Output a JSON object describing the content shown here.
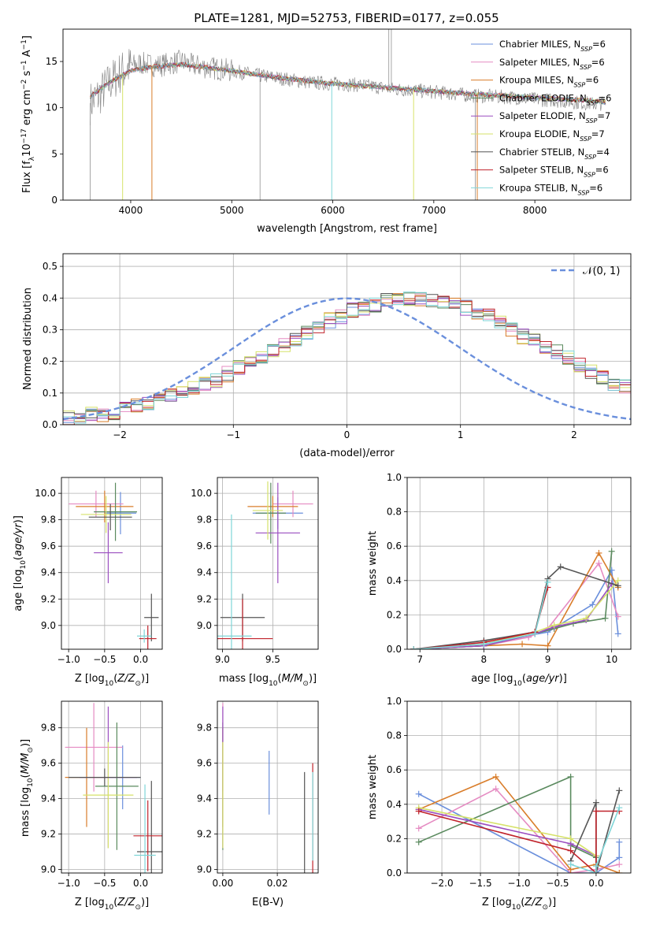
{
  "title": "PLATE=1281, MJD=52753, FIBERID=0177, z=0.055",
  "colors": {
    "Chabrier MILES": "#6a8fdc",
    "Salpeter MILES": "#e58bc2",
    "Kroupa MILES": "#d97d2a",
    "Chabrier ELODIE": "#5a8a5e",
    "Salpeter ELODIE": "#9b4fc0",
    "Kroupa ELODIE": "#d6e26a",
    "Chabrier STELIB": "#555555",
    "Salpeter STELIB": "#c0232b",
    "Kroupa STELIB": "#7fd6d8"
  },
  "chart_data": [
    {
      "id": "spectrum",
      "type": "line",
      "xlabel": "wavelength [Angstrom, rest frame]",
      "ylabel": "Flux [f_λ 10^-17 erg cm^-2 s^-1 A^-1]",
      "xlim": [
        3330,
        8950
      ],
      "ylim": [
        0,
        18.5
      ],
      "xticks": [
        "4000",
        "5000",
        "6000",
        "7000",
        "8000"
      ],
      "yticks": [
        "0",
        "5",
        "10",
        "15"
      ],
      "grid": false,
      "legend_position": "top-right",
      "legend": [
        "Chabrier MILES, N_SSP=6",
        "Salpeter MILES, N_SSP=6",
        "Kroupa MILES, N_SSP=6",
        "Chabrier ELODIE, N_SSP=6",
        "Salpeter ELODIE, N_SSP=7",
        "Kroupa ELODIE, N_SSP=7",
        "Chabrier STELIB, N_SSP=4",
        "Salpeter STELIB, N_SSP=6",
        "Kroupa STELIB, N_SSP=6"
      ],
      "data_series": {
        "name": "data",
        "color": "#808080",
        "x": [
          3600,
          3700,
          3800,
          3900,
          4000,
          4100,
          4200,
          4300,
          4400,
          4500,
          4600,
          4800,
          5000,
          5200,
          5400,
          5600,
          5800,
          6000,
          6200,
          6400,
          6600,
          6800,
          7000,
          7200,
          7400,
          7600,
          7800,
          8000,
          8200,
          8400,
          8600,
          8700
        ],
        "y": [
          10.5,
          11.5,
          12.8,
          13.8,
          14.5,
          14.8,
          14.6,
          14.6,
          14.8,
          15.0,
          14.6,
          14.3,
          14.0,
          13.6,
          13.3,
          13.0,
          12.7,
          12.6,
          12.5,
          12.3,
          12.0,
          11.9,
          11.7,
          11.5,
          11.3,
          11.2,
          11.1,
          10.9,
          10.8,
          10.6,
          10.4,
          10.5
        ]
      },
      "model_series": [
        {
          "x": [
            3600,
            3800,
            4000,
            4200,
            4500,
            5000,
            5500,
            6000,
            6500,
            7000,
            7500,
            8000,
            8500,
            8700
          ],
          "y": [
            11.2,
            12.8,
            14.0,
            14.4,
            14.7,
            14.0,
            13.2,
            12.6,
            12.2,
            11.8,
            11.4,
            11.1,
            10.8,
            10.6
          ]
        }
      ]
    },
    {
      "id": "residual-histogram",
      "type": "histogram",
      "xlabel": "(data-model)/error",
      "ylabel": "Normed distribution",
      "xlim": [
        -2.5,
        2.5
      ],
      "ylim": [
        0,
        0.54
      ],
      "xticks": [
        "−2",
        "−1",
        "0",
        "1",
        "2"
      ],
      "yticks": [
        "0.0",
        "0.1",
        "0.2",
        "0.3",
        "0.4",
        "0.5"
      ],
      "grid": true,
      "legend_position": "top-right",
      "legend": [
        "𝒩(0, 1)"
      ],
      "bin_width": 0.1,
      "bin_start": -2.5,
      "counts": [
        0.02,
        0.03,
        0.03,
        0.03,
        0.04,
        0.05,
        0.06,
        0.07,
        0.08,
        0.09,
        0.11,
        0.12,
        0.13,
        0.14,
        0.16,
        0.18,
        0.2,
        0.21,
        0.23,
        0.25,
        0.27,
        0.29,
        0.31,
        0.33,
        0.34,
        0.36,
        0.37,
        0.38,
        0.39,
        0.4,
        0.4,
        0.4,
        0.39,
        0.39,
        0.38,
        0.37,
        0.35,
        0.34,
        0.32,
        0.3,
        0.28,
        0.27,
        0.25,
        0.23,
        0.21,
        0.19,
        0.17,
        0.15,
        0.13,
        0.12,
        0.1
      ],
      "normal_curve": {
        "mean": 0,
        "sigma": 1,
        "color": "#6a8fdc"
      }
    },
    {
      "id": "age-vs-z",
      "type": "errorbar",
      "xlabel": "Z [log10(Z/Z⊙)]",
      "ylabel": "age  [log10(age/yr)]",
      "xlim": [
        -1.1,
        0.3
      ],
      "ylim": [
        8.82,
        10.12
      ],
      "xticks": [
        "−1.0",
        "−0.5",
        "0.0"
      ],
      "yticks": [
        "9.0",
        "9.2",
        "9.4",
        "9.6",
        "9.8",
        "10.0"
      ],
      "points": [
        {
          "model": "Chabrier MILES",
          "x": -0.28,
          "xerr": 0.22,
          "y": 9.85,
          "yerr": 0.16
        },
        {
          "model": "Salpeter MILES",
          "x": -0.62,
          "xerr": 0.38,
          "y": 9.92,
          "yerr": 0.1
        },
        {
          "model": "Kroupa MILES",
          "x": -0.5,
          "xerr": 0.4,
          "y": 9.9,
          "yerr": 0.12
        },
        {
          "model": "Chabrier ELODIE",
          "x": -0.35,
          "xerr": 0.3,
          "y": 9.86,
          "yerr": 0.22
        },
        {
          "model": "Salpeter ELODIE",
          "x": -0.45,
          "xerr": 0.2,
          "y": 9.55,
          "yerr": 0.23
        },
        {
          "model": "Kroupa ELODIE",
          "x": -0.48,
          "xerr": 0.35,
          "y": 9.84,
          "yerr": 0.14
        },
        {
          "model": "Chabrier STELIB",
          "x": 0.15,
          "xerr": 0.1,
          "y": 9.06,
          "yerr": 0.18
        },
        {
          "model": "Chabrier STELIB",
          "x": -0.42,
          "xerr": 0.3,
          "y": 9.82,
          "yerr": 0.1
        },
        {
          "model": "Salpeter STELIB",
          "x": 0.1,
          "xerr": 0.12,
          "y": 8.9,
          "yerr": 0.1
        },
        {
          "model": "Kroupa STELIB",
          "x": 0.05,
          "xerr": 0.1,
          "y": 8.92,
          "yerr": 0.05
        }
      ]
    },
    {
      "id": "age-vs-mass",
      "type": "errorbar",
      "xlabel": "mass [log10(M/M⊙)]",
      "ylabel": "",
      "xlim": [
        8.95,
        9.95
      ],
      "ylim": [
        8.82,
        10.12
      ],
      "xticks": [
        "9.0",
        "9.5"
      ],
      "yticks": [
        "9.0",
        "9.2",
        "9.4",
        "9.6",
        "9.8",
        "10.0"
      ],
      "points": [
        {
          "model": "Chabrier MILES",
          "x": 9.55,
          "xerr": 0.25,
          "y": 9.85,
          "yerr": 0.12
        },
        {
          "model": "Salpeter MILES",
          "x": 9.7,
          "xerr": 0.2,
          "y": 9.92,
          "yerr": 0.1
        },
        {
          "model": "Kroupa MILES",
          "x": 9.5,
          "xerr": 0.25,
          "y": 9.9,
          "yerr": 0.08
        },
        {
          "model": "Chabrier ELODIE",
          "x": 9.48,
          "xerr": 0.15,
          "y": 9.85,
          "yerr": 0.23
        },
        {
          "model": "Salpeter ELODIE",
          "x": 9.55,
          "xerr": 0.22,
          "y": 9.7,
          "yerr": 0.38
        },
        {
          "model": "Kroupa ELODIE",
          "x": 9.45,
          "xerr": 0.15,
          "y": 9.87,
          "yerr": 0.22
        },
        {
          "model": "Chabrier STELIB",
          "x": 9.2,
          "xerr": 0.22,
          "y": 9.06,
          "yerr": 0.18
        },
        {
          "model": "Salpeter STELIB",
          "x": 9.2,
          "xerr": 0.3,
          "y": 8.9,
          "yerr": 0.3
        },
        {
          "model": "Kroupa STELIB",
          "x": 9.09,
          "xerr": 0.2,
          "y": 8.92,
          "yerr": 0.92
        }
      ]
    },
    {
      "id": "weight-vs-age",
      "type": "line",
      "xlabel": "age  [log10(age/yr)]",
      "ylabel": "mass weight",
      "xlim": [
        6.8,
        10.3
      ],
      "ylim": [
        0,
        1.0
      ],
      "xticks": [
        "7",
        "8",
        "9",
        "10"
      ],
      "yticks": [
        "0.0",
        "0.2",
        "0.4",
        "0.6",
        "0.8",
        "1.0"
      ],
      "grid": true,
      "series": [
        {
          "model": "Chabrier MILES",
          "x": [
            6.9,
            8.0,
            8.7,
            9.0,
            9.7,
            10.0,
            10.1
          ],
          "y": [
            0.0,
            0.02,
            0.08,
            0.1,
            0.26,
            0.46,
            0.09
          ]
        },
        {
          "model": "Salpeter MILES",
          "x": [
            6.9,
            8.0,
            8.7,
            9.0,
            9.8,
            10.1
          ],
          "y": [
            0.0,
            0.02,
            0.07,
            0.12,
            0.5,
            0.19
          ]
        },
        {
          "model": "Kroupa MILES",
          "x": [
            6.9,
            8.0,
            8.6,
            9.0,
            9.8,
            10.1
          ],
          "y": [
            0.0,
            0.02,
            0.03,
            0.02,
            0.56,
            0.36
          ]
        },
        {
          "model": "Chabrier ELODIE",
          "x": [
            6.9,
            8.0,
            8.8,
            9.1,
            9.4,
            9.9,
            10.0
          ],
          "y": [
            0.0,
            0.02,
            0.09,
            0.12,
            0.15,
            0.18,
            0.57
          ]
        },
        {
          "model": "Salpeter ELODIE",
          "x": [
            6.9,
            8.0,
            8.8,
            9.1,
            9.6,
            10.0
          ],
          "y": [
            0.0,
            0.02,
            0.09,
            0.13,
            0.17,
            0.38
          ]
        },
        {
          "model": "Kroupa ELODIE",
          "x": [
            6.9,
            8.0,
            8.8,
            9.1,
            9.6,
            10.1
          ],
          "y": [
            0.0,
            0.03,
            0.1,
            0.14,
            0.18,
            0.4
          ]
        },
        {
          "model": "Chabrier STELIB",
          "x": [
            6.9,
            8.0,
            8.8,
            9.0,
            9.2,
            10.1
          ],
          "y": [
            0.0,
            0.05,
            0.1,
            0.41,
            0.48,
            0.37
          ]
        },
        {
          "model": "Salpeter STELIB",
          "x": [
            6.9,
            8.0,
            8.8,
            9.0
          ],
          "y": [
            0.0,
            0.04,
            0.1,
            0.36
          ]
        },
        {
          "model": "Kroupa STELIB",
          "x": [
            6.9,
            8.0,
            8.8,
            9.0
          ],
          "y": [
            0.0,
            0.03,
            0.09,
            0.39
          ]
        }
      ]
    },
    {
      "id": "mass-vs-z",
      "type": "errorbar",
      "xlabel": "Z [log10(Z/Z⊙)]",
      "ylabel": "mass [log10(M/M⊙)]",
      "xlim": [
        -1.1,
        0.3
      ],
      "ylim": [
        8.98,
        9.95
      ],
      "xticks": [
        "−1.0",
        "−0.5",
        "0.0"
      ],
      "yticks": [
        "9.0",
        "9.2",
        "9.4",
        "9.6",
        "9.8"
      ],
      "points": [
        {
          "model": "Chabrier MILES",
          "x": -0.25,
          "xerr": 0.25,
          "y": 9.52,
          "yerr": 0.18
        },
        {
          "model": "Salpeter MILES",
          "x": -0.65,
          "xerr": 0.4,
          "y": 9.69,
          "yerr": 0.25
        },
        {
          "model": "Kroupa MILES",
          "x": -0.75,
          "xerr": 0.3,
          "y": 9.52,
          "yerr": 0.28
        },
        {
          "model": "Chabrier ELODIE",
          "x": -0.33,
          "xerr": 0.3,
          "y": 9.47,
          "yerr": 0.36
        },
        {
          "model": "Salpeter ELODIE",
          "x": -0.45,
          "xerr": 0.4,
          "y": 9.52,
          "yerr": 0.4
        },
        {
          "model": "Kroupa ELODIE",
          "x": -0.45,
          "xerr": 0.35,
          "y": 9.42,
          "yerr": 0.3
        },
        {
          "model": "Chabrier STELIB",
          "x": 0.15,
          "xerr": 0.2,
          "y": 9.1,
          "yerr": 0.4
        },
        {
          "model": "Chabrier STELIB",
          "x": -0.5,
          "xerr": 0.5,
          "y": 9.52,
          "yerr": 0.05
        },
        {
          "model": "Salpeter STELIB",
          "x": 0.1,
          "xerr": 0.2,
          "y": 9.19,
          "yerr": 0.2
        },
        {
          "model": "Kroupa STELIB",
          "x": 0.06,
          "xerr": 0.15,
          "y": 9.08,
          "yerr": 0.4
        }
      ]
    },
    {
      "id": "mass-vs-ebv",
      "type": "errorbar",
      "xlabel": "E(B-V)",
      "ylabel": "",
      "xlim": [
        -0.002,
        0.035
      ],
      "ylim": [
        8.98,
        9.95
      ],
      "xticks": [
        "0.00",
        "0.02"
      ],
      "yticks": [
        "9.0",
        "9.2",
        "9.4",
        "9.6",
        "9.8"
      ],
      "points": [
        {
          "model": "Chabrier MILES",
          "x": 0.017,
          "y": 9.49,
          "yerr": 0.18
        },
        {
          "model": "Salpeter MILES",
          "x": 0.0,
          "y": 9.69,
          "yerr": 0.25
        },
        {
          "model": "Kroupa MILES",
          "x": 0.0,
          "y": 9.52,
          "yerr": 0.28
        },
        {
          "model": "Chabrier ELODIE",
          "x": 0.0,
          "y": 9.47,
          "yerr": 0.36
        },
        {
          "model": "Salpeter ELODIE",
          "x": 0.0,
          "y": 9.52,
          "yerr": 0.4
        },
        {
          "model": "Kroupa ELODIE",
          "x": 0.0,
          "y": 9.42,
          "yerr": 0.3
        },
        {
          "model": "Chabrier STELIB",
          "x": 0.03,
          "y": 9.2,
          "yerr": 0.35
        },
        {
          "model": "Salpeter STELIB",
          "x": 0.033,
          "y": 9.2,
          "yerr": 0.4
        },
        {
          "model": "Kroupa STELIB",
          "x": 0.033,
          "y": 9.3,
          "yerr": 0.25
        }
      ]
    },
    {
      "id": "weight-vs-z",
      "type": "line",
      "xlabel": "Z [log10(Z/Z⊙)]",
      "ylabel": "mass weight",
      "xlim": [
        -2.45,
        0.45
      ],
      "ylim": [
        0,
        1.0
      ],
      "xticks": [
        "−2.0",
        "−1.5",
        "−1.0",
        "−0.5",
        "0.0"
      ],
      "yticks": [
        "0.0",
        "0.2",
        "0.4",
        "0.6",
        "0.8",
        "1.0"
      ],
      "grid": true,
      "series": [
        {
          "model": "Chabrier MILES",
          "x": [
            -2.3,
            -0.33,
            0.0,
            0.3,
            0.3
          ],
          "y": [
            0.46,
            0.0,
            0.0,
            0.09,
            0.18
          ]
        },
        {
          "model": "Salpeter MILES",
          "x": [
            -2.3,
            -1.3,
            -0.33,
            0.0,
            0.3
          ],
          "y": [
            0.26,
            0.49,
            0.0,
            0.02,
            0.05
          ]
        },
        {
          "model": "Kroupa MILES",
          "x": [
            -2.3,
            -1.3,
            -0.33,
            0.0,
            0.3
          ],
          "y": [
            0.37,
            0.56,
            0.02,
            0.05,
            0.0
          ]
        },
        {
          "model": "Chabrier ELODIE",
          "x": [
            -2.3,
            -0.33,
            -0.33,
            0.0,
            0.0
          ],
          "y": [
            0.18,
            0.56,
            0.16,
            0.09,
            0.0
          ]
        },
        {
          "model": "Salpeter ELODIE",
          "x": [
            -2.3,
            -0.33,
            0.0
          ],
          "y": [
            0.37,
            0.17,
            0.1
          ]
        },
        {
          "model": "Kroupa ELODIE",
          "x": [
            -2.3,
            -0.33,
            0.0
          ],
          "y": [
            0.38,
            0.2,
            0.1
          ]
        },
        {
          "model": "Chabrier STELIB",
          "x": [
            -0.33,
            0.0,
            0.0,
            0.3
          ],
          "y": [
            0.07,
            0.41,
            0.0,
            0.48
          ]
        },
        {
          "model": "Salpeter STELIB",
          "x": [
            -2.3,
            -0.33,
            0.0,
            0.0,
            0.3
          ],
          "y": [
            0.36,
            0.13,
            0.0,
            0.36,
            0.36
          ]
        },
        {
          "model": "Kroupa STELIB",
          "x": [
            -0.33,
            0.0,
            0.0,
            0.3
          ],
          "y": [
            0.05,
            0.0,
            0.04,
            0.38
          ]
        }
      ]
    }
  ]
}
